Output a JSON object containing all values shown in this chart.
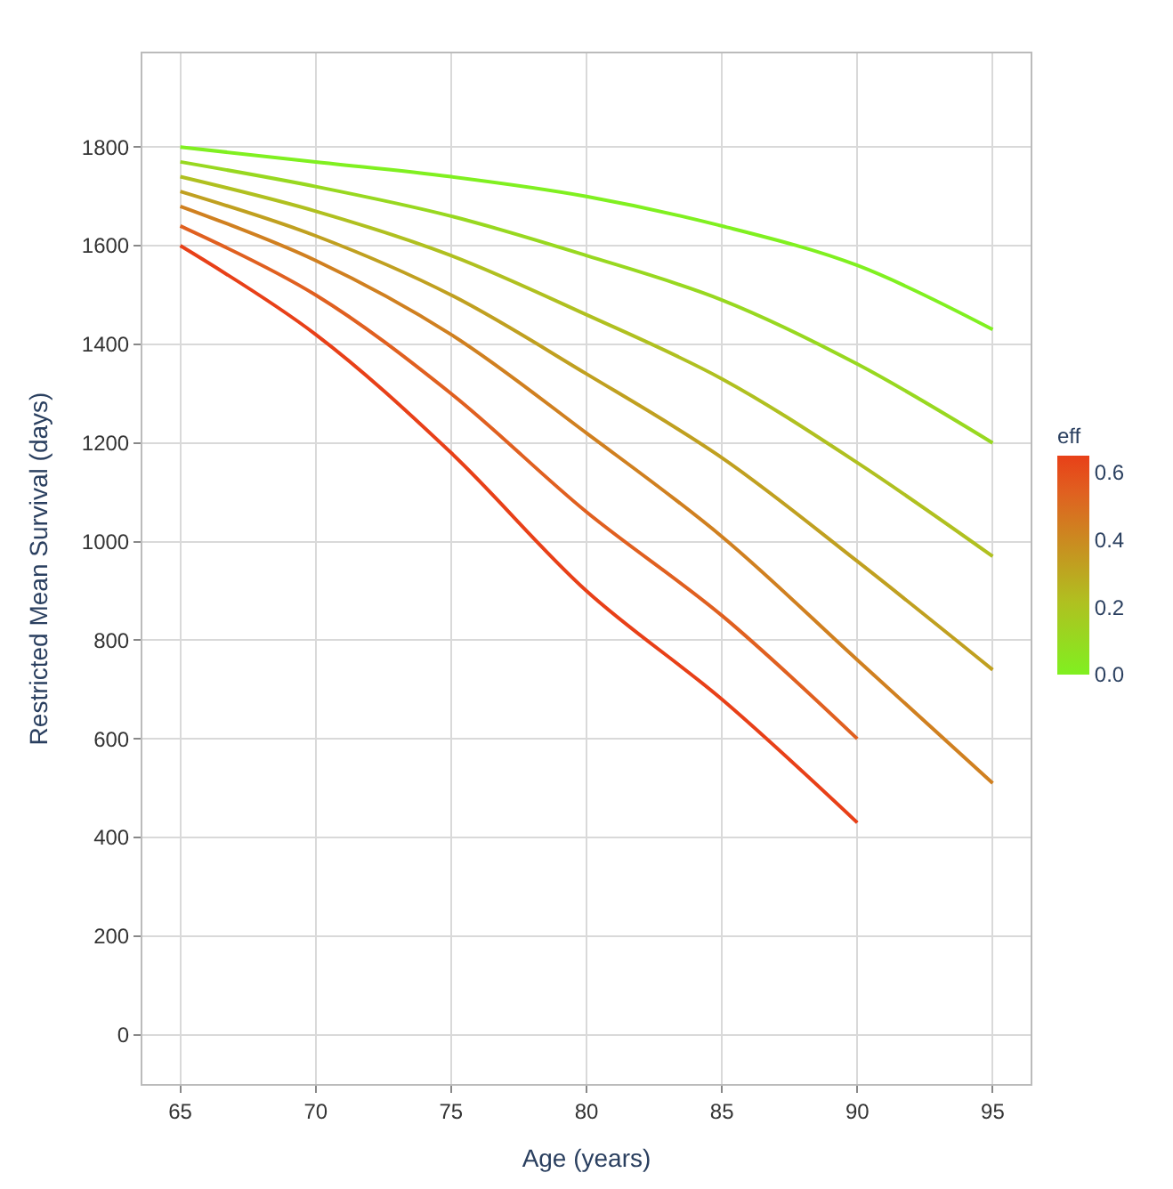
{
  "chart_data": {
    "type": "line",
    "xlabel": "Age (years)",
    "ylabel": "Restricted Mean Survival (days)",
    "clabel": "eff",
    "x": [
      65,
      70,
      75,
      80,
      85,
      90,
      95
    ],
    "series": [
      {
        "color": "#80f020",
        "values": [
          1800,
          1770,
          1740,
          1700,
          1640,
          1560,
          1430
        ]
      },
      {
        "color": "#98d820",
        "values": [
          1770,
          1720,
          1660,
          1580,
          1490,
          1360,
          1200
        ]
      },
      {
        "color": "#b0c020",
        "values": [
          1740,
          1670,
          1580,
          1460,
          1330,
          1160,
          970
        ]
      },
      {
        "color": "#c0a020",
        "values": [
          1710,
          1620,
          1500,
          1340,
          1170,
          960,
          740
        ]
      },
      {
        "color": "#d08020",
        "values": [
          1680,
          1570,
          1420,
          1220,
          1010,
          760,
          510
        ]
      },
      {
        "color": "#e06020",
        "values": [
          1640,
          1500,
          1300,
          1060,
          850,
          600,
          null
        ]
      },
      {
        "color": "#e84018",
        "values": [
          1600,
          1420,
          1180,
          900,
          680,
          430,
          null
        ]
      }
    ],
    "xlim": [
      63.6,
      96.4
    ],
    "ylim": [
      -100,
      1990
    ],
    "xticks": [
      65,
      70,
      75,
      80,
      85,
      90,
      95
    ],
    "yticks": [
      0,
      200,
      400,
      600,
      800,
      1000,
      1200,
      1400,
      1600,
      1800
    ],
    "clim": [
      0,
      0.65
    ],
    "cticks": [
      {
        "value": 0,
        "label": "0.0"
      },
      {
        "value": 0.2,
        "label": "0.2"
      },
      {
        "value": 0.4,
        "label": "0.4"
      },
      {
        "value": 0.6,
        "label": "0.6"
      }
    ],
    "grid": true,
    "marker": "none",
    "line_style": "solid"
  }
}
